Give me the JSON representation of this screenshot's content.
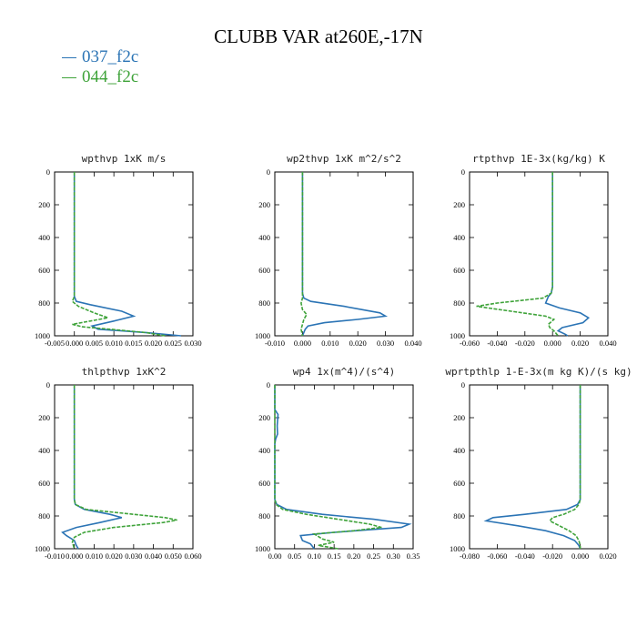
{
  "title": "CLUBB VAR at260E,-17N",
  "legend": [
    {
      "label": "037_f2c",
      "color": "#2b74b5"
    },
    {
      "label": "044_f2c",
      "color": "#3fa33a"
    }
  ],
  "chart_data": [
    {
      "type": "line",
      "title": "wpthvp  1xK m/s",
      "xlim": [
        -0.005,
        0.03
      ],
      "ylim": [
        0,
        1000
      ],
      "y_inverted": true,
      "xticks": [
        "-0.005",
        "0.000",
        "0.005",
        "0.010",
        "0.015",
        "0.020",
        "0.025",
        "0.030"
      ],
      "yticks": [
        "0",
        "200",
        "400",
        "600",
        "800",
        "1000"
      ],
      "series": [
        {
          "y": [
            0,
            200,
            400,
            600,
            700,
            760,
            790,
            810,
            850,
            880,
            910,
            940,
            960,
            980,
            1000
          ],
          "x": [
            0,
            0,
            0,
            0,
            0,
            0,
            0.0005,
            0.004,
            0.012,
            0.015,
            0.01,
            0.0045,
            0.006,
            0.018,
            0.027
          ]
        },
        {
          "y": [
            0,
            200,
            400,
            600,
            700,
            760,
            790,
            820,
            860,
            890,
            910,
            930,
            945,
            960,
            980,
            1000
          ],
          "x": [
            0,
            0,
            0,
            0,
            0,
            0,
            -0.0005,
            0.001,
            0.005,
            0.0085,
            0.004,
            -0.0005,
            0.002,
            0.009,
            0.018,
            0.023
          ]
        }
      ]
    },
    {
      "type": "line",
      "title": "wp2thvp  1xK m^2/s^2",
      "xlim": [
        -0.01,
        0.04
      ],
      "ylim": [
        0,
        1000
      ],
      "y_inverted": true,
      "xticks": [
        "-0.010",
        "0.000",
        "0.010",
        "0.020",
        "0.030",
        "0.040"
      ],
      "yticks": [
        "0",
        "200",
        "400",
        "600",
        "800",
        "1000"
      ],
      "series": [
        {
          "y": [
            0,
            200,
            400,
            600,
            700,
            740,
            770,
            790,
            820,
            860,
            880,
            900,
            920,
            940,
            960,
            1000
          ],
          "x": [
            0,
            0,
            0,
            0,
            0,
            0,
            0.0005,
            0.003,
            0.015,
            0.028,
            0.03,
            0.02,
            0.008,
            0.002,
            0.001,
            0
          ]
        },
        {
          "y": [
            0,
            200,
            400,
            600,
            700,
            740,
            770,
            800,
            840,
            870,
            900,
            930,
            960,
            1000
          ],
          "x": [
            0,
            0,
            0,
            0,
            0,
            0,
            0,
            -0.0005,
            0,
            0.0015,
            0.0005,
            0,
            -0.0005,
            0
          ]
        }
      ]
    },
    {
      "type": "line",
      "title": "rtpthvp  1E-3x(kg/kg) K",
      "xlim": [
        -0.06,
        0.04
      ],
      "ylim": [
        0,
        1000
      ],
      "y_inverted": true,
      "xticks": [
        "-0.060",
        "-0.040",
        "-0.020",
        "0.000",
        "0.020",
        "0.040"
      ],
      "yticks": [
        "0",
        "200",
        "400",
        "600",
        "800",
        "1000"
      ],
      "series": [
        {
          "y": [
            0,
            200,
            400,
            600,
            700,
            740,
            760,
            780,
            800,
            830,
            860,
            890,
            920,
            950,
            970,
            990,
            1000
          ],
          "x": [
            0,
            0,
            0,
            0,
            0,
            -0.001,
            -0.003,
            -0.004,
            -0.005,
            0.005,
            0.02,
            0.026,
            0.022,
            0.007,
            0.004,
            0.009,
            0.011
          ]
        },
        {
          "y": [
            0,
            200,
            400,
            600,
            700,
            740,
            770,
            800,
            820,
            850,
            880,
            900,
            930,
            950,
            970,
            1000
          ],
          "x": [
            0,
            0,
            0,
            0,
            0,
            -0.001,
            -0.007,
            -0.04,
            -0.055,
            -0.03,
            -0.005,
            0.001,
            -0.003,
            -0.002,
            0.001,
            0.004
          ]
        }
      ]
    },
    {
      "type": "line",
      "title": "thlpthvp  1xK^2",
      "xlim": [
        -0.01,
        0.06
      ],
      "ylim": [
        0,
        1000
      ],
      "y_inverted": true,
      "xticks": [
        "-0.010",
        "0.000",
        "0.010",
        "0.020",
        "0.030",
        "0.040",
        "0.050",
        "0.060"
      ],
      "yticks": [
        "0",
        "200",
        "400",
        "600",
        "800",
        "1000"
      ],
      "series": [
        {
          "y": [
            0,
            200,
            400,
            600,
            700,
            730,
            760,
            790,
            810,
            840,
            870,
            900,
            920,
            950,
            980,
            1000
          ],
          "x": [
            0,
            0,
            0,
            0,
            0,
            0.0005,
            0.005,
            0.018,
            0.024,
            0.013,
            0.001,
            -0.006,
            -0.004,
            0,
            0.001,
            0.002
          ]
        },
        {
          "y": [
            0,
            200,
            400,
            600,
            700,
            730,
            760,
            790,
            810,
            825,
            840,
            870,
            900,
            930,
            960,
            1000
          ],
          "x": [
            0,
            0,
            0,
            0,
            0,
            0.0005,
            0.006,
            0.03,
            0.046,
            0.052,
            0.045,
            0.02,
            0.005,
            0,
            -0.001,
            0
          ]
        }
      ]
    },
    {
      "type": "line",
      "title": "wp4  1x(m^4)/(s^4)",
      "xlim": [
        0.0,
        0.35
      ],
      "ylim": [
        0,
        1000
      ],
      "y_inverted": true,
      "xticks": [
        "0.00",
        "0.05",
        "0.10",
        "0.15",
        "0.20",
        "0.25",
        "0.30",
        "0.35"
      ],
      "yticks": [
        "0",
        "200",
        "400",
        "600",
        "800",
        "1000"
      ],
      "series": [
        {
          "y": [
            0,
            150,
            180,
            250,
            300,
            330,
            360,
            500,
            600,
            700,
            730,
            760,
            790,
            820,
            850,
            870,
            900,
            920,
            950,
            970,
            1000
          ],
          "x": [
            0,
            0,
            0.008,
            0.006,
            0.007,
            0.002,
            0,
            0,
            0,
            0,
            0.005,
            0.03,
            0.12,
            0.25,
            0.34,
            0.32,
            0.15,
            0.065,
            0.07,
            0.09,
            0.1
          ]
        },
        {
          "y": [
            0,
            200,
            400,
            600,
            700,
            730,
            760,
            790,
            820,
            850,
            870,
            890,
            910,
            940,
            960,
            980,
            1000
          ],
          "x": [
            0,
            0,
            0,
            0,
            0,
            0.003,
            0.02,
            0.08,
            0.16,
            0.24,
            0.27,
            0.2,
            0.1,
            0.12,
            0.15,
            0.11,
            0.16
          ]
        }
      ]
    },
    {
      "type": "line",
      "title": "wprtpthlp  1-E-3x(m kg K)/(s kg)",
      "xlim": [
        -0.08,
        0.02
      ],
      "ylim": [
        0,
        1000
      ],
      "y_inverted": true,
      "xticks": [
        "-0.080",
        "-0.060",
        "-0.040",
        "-0.020",
        "0.000",
        "0.020"
      ],
      "yticks": [
        "0",
        "200",
        "400",
        "600",
        "800",
        "1000"
      ],
      "series": [
        {
          "y": [
            0,
            200,
            400,
            600,
            700,
            730,
            760,
            790,
            810,
            830,
            860,
            890,
            920,
            950,
            980,
            1000
          ],
          "x": [
            0,
            0,
            0,
            0,
            0,
            -0.002,
            -0.01,
            -0.04,
            -0.063,
            -0.068,
            -0.045,
            -0.025,
            -0.012,
            -0.004,
            -0.001,
            0
          ]
        },
        {
          "y": [
            0,
            200,
            400,
            600,
            700,
            730,
            760,
            790,
            810,
            830,
            860,
            890,
            920,
            950,
            980,
            1000
          ],
          "x": [
            0,
            0,
            0,
            0,
            0,
            -0.001,
            -0.004,
            -0.012,
            -0.02,
            -0.022,
            -0.015,
            -0.008,
            -0.003,
            -0.001,
            0,
            0
          ]
        }
      ]
    }
  ]
}
